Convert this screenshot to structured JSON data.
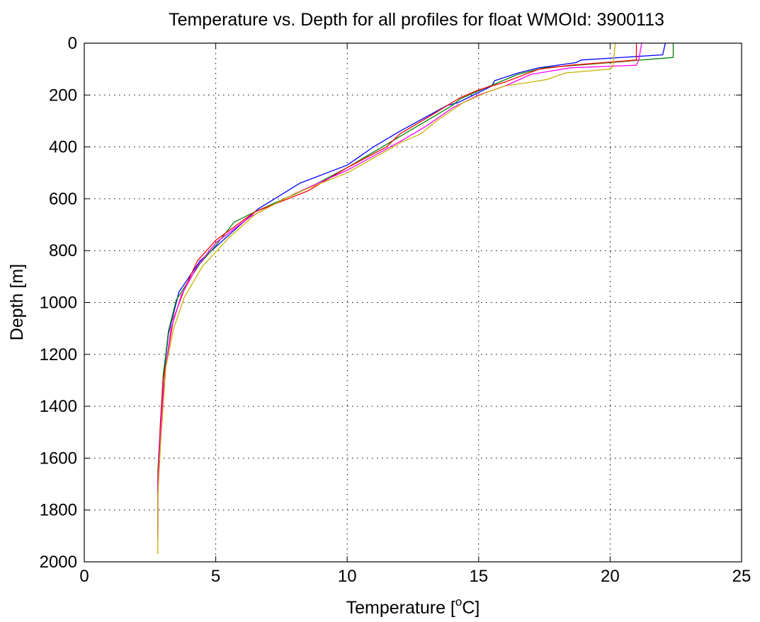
{
  "chart_data": {
    "type": "line",
    "title": "Temperature vs. Depth for all profiles for float WMOId: 3900113",
    "xlabel": "Temperature [",
    "xlabel_superscript": "o",
    "xlabel_suffix": "C]",
    "ylabel": "Depth [m]",
    "xlim": [
      0,
      25
    ],
    "ylim": [
      0,
      2000
    ],
    "y_reversed": true,
    "xticks": [
      0,
      5,
      10,
      15,
      20,
      25
    ],
    "yticks": [
      0,
      200,
      400,
      600,
      800,
      1000,
      1200,
      1400,
      1600,
      1800,
      2000
    ],
    "grid": true,
    "series": [
      {
        "color": "#0000ff",
        "x": [
          22.1,
          22.0,
          18.9,
          18.7,
          17.3,
          16.5,
          15.6,
          15.5,
          14.6,
          14.2,
          13.8,
          12.0,
          11.0,
          10.0,
          8.2,
          6.6,
          5.5,
          4.4,
          3.6,
          3.2,
          3.0,
          2.9,
          2.8,
          2.8
        ],
        "y": [
          0,
          45,
          65,
          75,
          95,
          115,
          145,
          165,
          210,
          230,
          240,
          340,
          400,
          470,
          540,
          640,
          740,
          840,
          960,
          1120,
          1300,
          1500,
          1700,
          1880
        ]
      },
      {
        "color": "#008000",
        "x": [
          22.4,
          22.4,
          17.5,
          16.5,
          15.2,
          14.3,
          14.0,
          11.5,
          10.0,
          8.5,
          6.5,
          5.7,
          5.0,
          4.4,
          3.5,
          3.2,
          3.1,
          3.0,
          2.9,
          2.8,
          2.8
        ],
        "y": [
          0,
          55,
          95,
          120,
          175,
          215,
          240,
          390,
          480,
          560,
          650,
          690,
          780,
          850,
          990,
          1110,
          1200,
          1280,
          1460,
          1650,
          1860
        ]
      },
      {
        "color": "#ff0000",
        "x": [
          21.0,
          21.0,
          18.5,
          17.3,
          16.0,
          15.0,
          14.3,
          13.0,
          12.0,
          11.5,
          10.0,
          8.5,
          6.5,
          5.0,
          4.3,
          3.8,
          3.4,
          3.2,
          3.0,
          2.9,
          2.8,
          2.8
        ],
        "y": [
          0,
          65,
          85,
          100,
          150,
          180,
          210,
          290,
          350,
          400,
          480,
          570,
          650,
          760,
          840,
          950,
          1060,
          1180,
          1300,
          1460,
          1680,
          1900
        ]
      },
      {
        "color": "#ff00ff",
        "x": [
          21.2,
          21.1,
          21.0,
          18.5,
          17.0,
          16.0,
          15.0,
          14.0,
          13.0,
          12.0,
          10.0,
          8.0,
          6.3,
          5.0,
          4.3,
          3.7,
          3.3,
          3.1,
          3.0,
          2.9,
          2.8,
          2.8
        ],
        "y": [
          0,
          60,
          85,
          95,
          120,
          165,
          200,
          250,
          320,
          380,
          490,
          580,
          670,
          770,
          860,
          970,
          1100,
          1250,
          1350,
          1500,
          1700,
          1920
        ]
      },
      {
        "color": "#c8b400",
        "x": [
          20.2,
          20.1,
          20.0,
          18.3,
          17.6,
          17.0,
          16.0,
          15.3,
          14.4,
          13.4,
          12.8,
          12.1,
          10.0,
          8.0,
          6.5,
          5.5,
          4.5,
          3.8,
          3.4,
          3.1,
          3.0,
          2.9,
          2.8,
          2.8
        ],
        "y": [
          0,
          90,
          100,
          115,
          140,
          150,
          165,
          190,
          230,
          300,
          350,
          380,
          500,
          580,
          660,
          750,
          860,
          980,
          1100,
          1250,
          1400,
          1550,
          1750,
          1970
        ]
      }
    ]
  }
}
